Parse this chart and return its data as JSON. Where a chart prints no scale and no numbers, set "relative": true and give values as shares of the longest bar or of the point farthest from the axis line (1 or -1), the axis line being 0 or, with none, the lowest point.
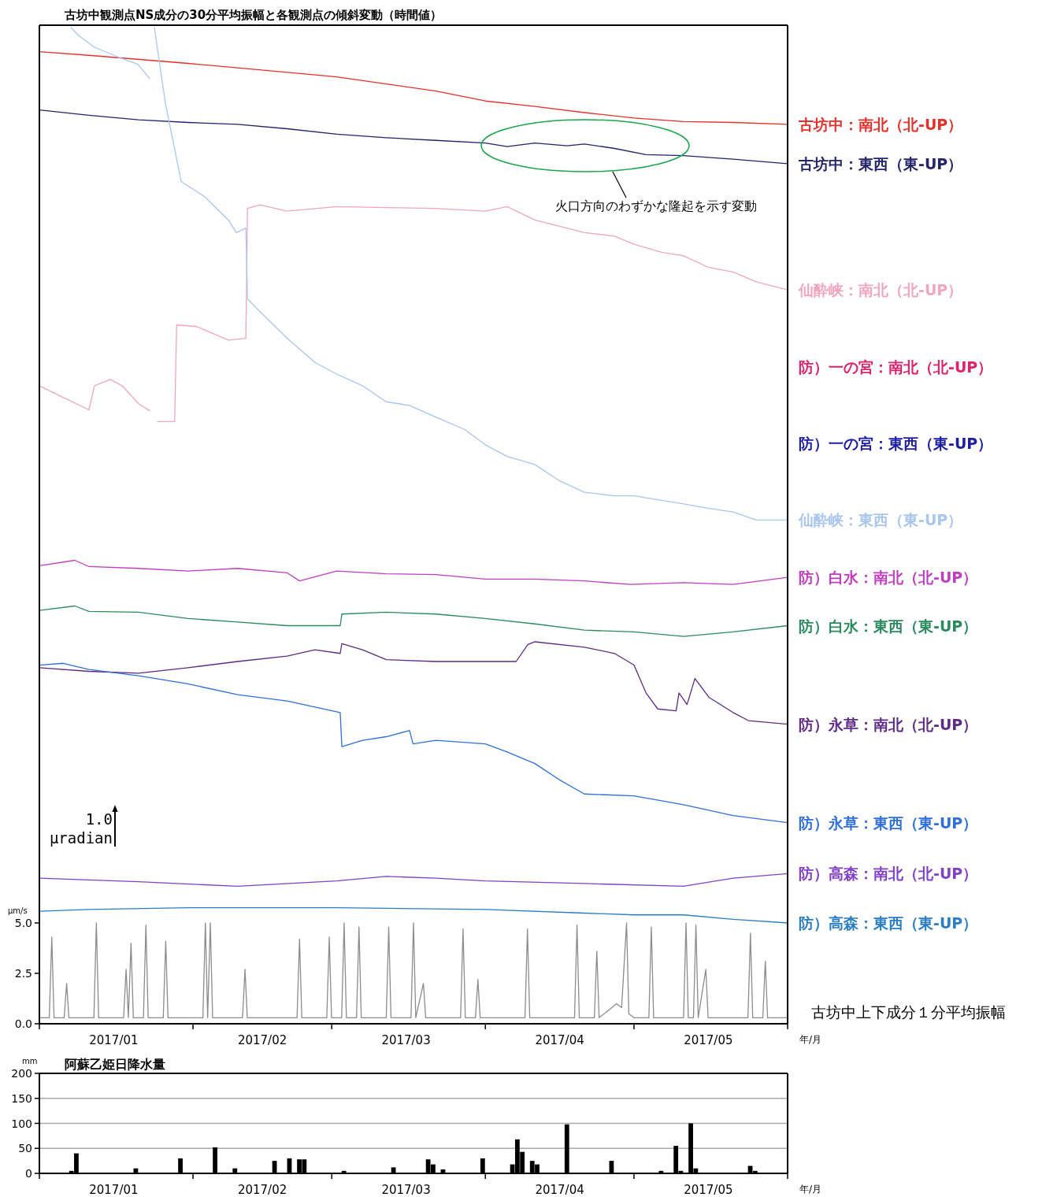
{
  "chart_data": [
    {
      "type": "line",
      "title": "古坊中観測点NS成分の30分平均振幅と各観測点の傾斜変動（時間値）",
      "relative": true,
      "xlim": [
        "2017-01-01",
        "2017-06-01"
      ],
      "annotations": [
        "火口方向のわずかな隆起を示す変動",
        "1.0 μradian"
      ],
      "series": [
        {
          "name": "古坊中：南北（北-UP）",
          "color": "#e8302a",
          "x": [
            "2017-01-01",
            "2017-01-11",
            "2017-01-31",
            "2017-02-10",
            "2017-03-02",
            "2017-03-12",
            "2017-03-22",
            "2017-04-01",
            "2017-04-11",
            "2017-04-21",
            "2017-05-01",
            "2017-05-11",
            "2017-05-21",
            "2017-06-01"
          ],
          "values": [
            0.973,
            0.969,
            0.96,
            0.955,
            0.945,
            0.937,
            0.929,
            0.918,
            0.912,
            0.905,
            0.899,
            0.895,
            0.894,
            0.892
          ]
        },
        {
          "name": "古坊中：東西（東-UP）",
          "color": "#23236e",
          "x": [
            "2017-01-01",
            "2017-01-11",
            "2017-01-21",
            "2017-01-31",
            "2017-02-10",
            "2017-02-20",
            "2017-03-02",
            "2017-03-12",
            "2017-03-22",
            "2017-04-01",
            "2017-04-05T10:00",
            "2017-04-11",
            "2017-04-17T12:00",
            "2017-04-21",
            "2017-04-27T02:00",
            "2017-05-03T10:00",
            "2017-05-11",
            "2017-05-21",
            "2017-06-01"
          ],
          "values": [
            0.908,
            0.902,
            0.897,
            0.894,
            0.892,
            0.887,
            0.881,
            0.877,
            0.874,
            0.871,
            0.867,
            0.871,
            0.868,
            0.87,
            0.865,
            0.858,
            0.857,
            0.853,
            0.848
          ]
        },
        {
          "name": "仙酔峡：南北（北-UP）",
          "color": "#f2a6bd",
          "x": [
            "2017-01-01",
            "2017-01-05T19:00",
            "2017-01-11",
            "2017-01-12T03:00",
            "2017-01-15T07:00",
            "2017-01-17T17:00",
            "2017-01-21",
            "2017-01-23T06:00",
            "2017-01-23T18:00",
            "2017-01-24T20:00",
            "2017-01-28T07:00",
            "2017-01-28T17:00",
            "2017-02-01T19:00",
            "2017-02-08T04:00",
            "2017-02-11T16:00",
            "2017-02-12T00:00",
            "2017-02-14T12:00",
            "2017-02-20",
            "2017-03-02",
            "2017-03-12",
            "2017-03-22",
            "2017-04-01",
            "2017-04-05T10:00",
            "2017-04-11",
            "2017-04-21",
            "2017-04-27T02:00",
            "2017-05-01",
            "2017-05-06T14:00",
            "2017-05-11",
            "2017-05-16T03:00",
            "2017-05-21",
            "2017-05-25T16:00",
            "2017-06-01"
          ],
          "values": [
            0.6,
            0.587,
            0.573,
            0.6,
            0.607,
            0.6,
            0.58,
            0.572,
            null,
            0.56,
            0.56,
            0.668,
            0.666,
            0.651,
            0.653,
            0.798,
            0.802,
            0.795,
            0.8,
            0.799,
            0.798,
            0.795,
            0.8,
            0.785,
            0.771,
            0.767,
            0.758,
            0.749,
            0.745,
            0.732,
            0.727,
            0.716,
            0.707
          ]
        },
        {
          "name": "防）一の宮：南北（北-UP）",
          "color": "#e0206a"
        },
        {
          "name": "防）一の宮：東西（東-UP）",
          "color": "#1c1ca8"
        },
        {
          "name": "仙酔峡：東西（東-UP）",
          "color": "#a9c6ef",
          "x": [
            "2017-01-07T09:00",
            "2017-01-08T23:00",
            "2017-01-12T03:00",
            "2017-01-16T22:00",
            "2017-01-20T21:00",
            "2017-01-23T06:00",
            "2017-01-23T18:00",
            "2017-01-24T05:00",
            "2017-01-26T10:00",
            "2017-01-29T15:00",
            "2017-02-03T09:00",
            "2017-02-08T04:00",
            "2017-02-09T18:00",
            "2017-02-11T16:00",
            "2017-02-12T00:00",
            "2017-02-14T12:00",
            "2017-02-20",
            "2017-02-25T15:00",
            "2017-03-02",
            "2017-03-07T05:00",
            "2017-03-12",
            "2017-03-16T17:00",
            "2017-03-22",
            "2017-03-27T21:00",
            "2017-04-01",
            "2017-04-05T10:00",
            "2017-04-11",
            "2017-04-15T22:00",
            "2017-04-21",
            "2017-04-27T02:00",
            "2017-05-01",
            "2017-05-06T14:00",
            "2017-05-11",
            "2017-05-16T03:00",
            "2017-05-21",
            "2017-05-25T16:00",
            "2017-06-01"
          ],
          "values": [
            1.0,
            0.991,
            0.978,
            0.967,
            0.959,
            0.943,
            null,
            1.0,
            0.916,
            0.828,
            0.811,
            0.785,
            0.771,
            0.776,
            0.697,
            0.683,
            0.653,
            0.626,
            0.613,
            0.6,
            0.582,
            0.578,
            0.565,
            0.551,
            0.534,
            0.521,
            0.512,
            0.494,
            0.481,
            0.477,
            0.477,
            0.472,
            0.468,
            0.463,
            0.459,
            0.45,
            0.45
          ]
        },
        {
          "name": "防）白水：南北（北-UP）",
          "color": "#c23cc2",
          "x": [
            "2017-01-01",
            "2017-01-08T04:00",
            "2017-01-11",
            "2017-01-21",
            "2017-01-31",
            "2017-02-10",
            "2017-02-20",
            "2017-02-22T12:00",
            "2017-03-02",
            "2017-03-12",
            "2017-03-22",
            "2017-04-01",
            "2017-04-11",
            "2017-04-21",
            "2017-04-30T06:00",
            "2017-05-11",
            "2017-05-21",
            "2017-06-01"
          ],
          "values": [
            0.399,
            0.405,
            0.398,
            0.396,
            0.393,
            0.396,
            0.391,
            0.382,
            0.393,
            0.39,
            0.389,
            0.384,
            0.384,
            0.382,
            0.378,
            0.38,
            0.378,
            0.386
          ]
        },
        {
          "name": "防）白水：東西（東-UP）",
          "color": "#2a8a5e",
          "x": [
            "2017-01-01",
            "2017-01-08T04:00",
            "2017-01-11",
            "2017-01-21",
            "2017-01-31",
            "2017-02-10",
            "2017-02-20",
            "2017-03-02T17:00",
            "2017-03-03T01:00",
            "2017-03-12",
            "2017-03-22",
            "2017-04-01",
            "2017-04-11",
            "2017-04-21",
            "2017-05-01",
            "2017-05-11",
            "2017-05-21",
            "2017-06-01"
          ],
          "values": [
            0.349,
            0.354,
            0.348,
            0.347,
            0.34,
            0.336,
            0.332,
            0.332,
            0.345,
            0.347,
            0.345,
            0.34,
            0.334,
            0.327,
            0.325,
            0.32,
            0.325,
            0.332
          ]
        },
        {
          "name": "防）永草：南北（北-UP）",
          "color": "#5e2a86",
          "x": [
            "2017-01-01",
            "2017-01-11",
            "2017-01-21",
            "2017-01-31",
            "2017-02-10",
            "2017-02-20",
            "2017-02-25T15:00",
            "2017-03-02T17:00",
            "2017-03-03T01:00",
            "2017-03-07T05:00",
            "2017-03-12",
            "2017-03-22",
            "2017-04-01",
            "2017-04-07T05:00",
            "2017-04-09T14:00",
            "2017-04-11",
            "2017-04-21",
            "2017-04-27T02:00",
            "2017-05-01",
            "2017-05-03T10:00",
            "2017-05-05T19:00",
            "2017-05-09T12:00",
            "2017-05-10T02:00",
            "2017-05-11T17:00",
            "2017-05-13T07:00",
            "2017-05-16T03:00",
            "2017-05-21",
            "2017-05-24T02:00",
            "2017-06-01"
          ],
          "values": [
            0.285,
            0.281,
            0.279,
            0.285,
            0.292,
            0.298,
            0.305,
            0.301,
            0.312,
            0.305,
            0.294,
            0.292,
            0.292,
            0.292,
            0.311,
            0.314,
            0.308,
            0.301,
            0.288,
            0.257,
            0.239,
            0.237,
            0.257,
            0.244,
            0.273,
            0.252,
            0.235,
            0.226,
            0.222
          ]
        },
        {
          "name": "防）永草：東西（東-UP）",
          "color": "#2f6fdc",
          "x": [
            "2017-01-01",
            "2017-01-05T19:00",
            "2017-01-11",
            "2017-01-21",
            "2017-01-31",
            "2017-02-10",
            "2017-02-20",
            "2017-02-25T15:00",
            "2017-03-02T17:00",
            "2017-03-03T01:00",
            "2017-03-07T05:00",
            "2017-03-12",
            "2017-03-16T17:00",
            "2017-03-17T10:00",
            "2017-03-22",
            "2017-04-01",
            "2017-04-05T10:00",
            "2017-04-11",
            "2017-04-15T22:00",
            "2017-04-21",
            "2017-05-01",
            "2017-05-11",
            "2017-05-21",
            "2017-06-01"
          ],
          "values": [
            0.288,
            0.29,
            0.283,
            0.276,
            0.267,
            0.255,
            0.248,
            0.241,
            0.235,
            0.197,
            0.204,
            0.208,
            0.215,
            0.2,
            0.204,
            0.2,
            0.191,
            0.178,
            0.16,
            0.144,
            0.142,
            0.132,
            0.12,
            0.112
          ]
        },
        {
          "name": "防）高森：南北（北-UP）",
          "color": "#8040c8",
          "x": [
            "2017-01-01",
            "2017-01-21",
            "2017-02-10",
            "2017-03-02",
            "2017-03-12",
            "2017-03-22",
            "2017-04-01",
            "2017-04-21",
            "2017-05-11",
            "2017-05-21",
            "2017-06-01"
          ],
          "values": [
            0.05,
            0.046,
            0.041,
            0.047,
            0.052,
            0.05,
            0.047,
            0.044,
            0.041,
            0.05,
            0.055
          ]
        },
        {
          "name": "防）高森：東西（東-UP）",
          "color": "#2a7ec8",
          "x": [
            "2017-01-01",
            "2017-01-11",
            "2017-01-31",
            "2017-03-02",
            "2017-04-01",
            "2017-04-21",
            "2017-05-01",
            "2017-05-11",
            "2017-05-21",
            "2017-06-01"
          ],
          "values": [
            0.013,
            0.015,
            0.017,
            0.017,
            0.015,
            0.011,
            0.009,
            0.009,
            0.004,
            0
          ]
        }
      ]
    },
    {
      "type": "line",
      "annotations": [
        "古坊中上下成分１分平均振幅"
      ],
      "ylabel": "μm/s",
      "xlabel": "年/月",
      "xlim": [
        "2017-01-01",
        "2017-06-01"
      ],
      "xticks": [
        {
          "value": "2017-01-01",
          "label": null
        },
        {
          "value": "2017-01-16",
          "label": "2017/01"
        },
        {
          "value": "2017-02-01",
          "label": null
        },
        {
          "value": "2017-02-15",
          "label": "2017/02"
        },
        {
          "value": "2017-03-01",
          "label": null
        },
        {
          "value": "2017-03-16",
          "label": "2017/03"
        },
        {
          "value": "2017-04-01",
          "label": null
        },
        {
          "value": "2017-04-16",
          "label": "2017/04"
        },
        {
          "value": "2017-05-01",
          "label": null
        },
        {
          "value": "2017-05-16",
          "label": "2017/05"
        },
        {
          "value": "2017-06-01",
          "label": null
        }
      ],
      "ylim": [
        0,
        5
      ],
      "yticks": [
        {
          "value": 0,
          "label": "0.0"
        },
        {
          "value": 2.5,
          "label": "2.5"
        },
        {
          "value": 5,
          "label": "5.0"
        }
      ],
      "series": [
        {
          "color": "#8c8c8c",
          "x": [
            "2017-01-01",
            "2017-01-03T00:00",
            "2017-01-03T12:00",
            "2017-01-03T23:00",
            "2017-01-06T00:00",
            "2017-01-06T12:00",
            "2017-01-06T23:00",
            "2017-01-12T00:00",
            "2017-01-12T12:00",
            "2017-01-12T23:00",
            "2017-01-18T00:00",
            "2017-01-18T12:00",
            "2017-01-18T23:00",
            "2017-01-19T12:00",
            "2017-01-19T23:00",
            "2017-01-22T00:00",
            "2017-01-22T12:00",
            "2017-01-22T23:00",
            "2017-01-26T00:00",
            "2017-01-26T12:00",
            "2017-01-26T23:00",
            "2017-02-03T00:00",
            "2017-02-03T12:00",
            "2017-02-03T23:00",
            "2017-02-04T12:00",
            "2017-02-04T23:00",
            "2017-02-11T00:00",
            "2017-02-11T12:00",
            "2017-02-11T23:00",
            "2017-02-22T00:00",
            "2017-02-22T12:00",
            "2017-02-22T23:00",
            "2017-02-28T00:00",
            "2017-02-28T12:00",
            "2017-02-28T23:00",
            "2017-03-03T00:00",
            "2017-03-03T12:00",
            "2017-03-03T23:00",
            "2017-03-06T00:00",
            "2017-03-06T12:00",
            "2017-03-06T23:00",
            "2017-03-12T00:00",
            "2017-03-12T12:00",
            "2017-03-12T23:00",
            "2017-03-17T00:00",
            "2017-03-17T12:00",
            "2017-03-17T23:00",
            "2017-03-19T12:00",
            "2017-03-19T23:00",
            "2017-03-27T00:00",
            "2017-03-27T12:00",
            "2017-03-27T23:00",
            "2017-03-30T00:00",
            "2017-03-30T12:00",
            "2017-03-30T23:00",
            "2017-04-09T00:00",
            "2017-04-09T12:00",
            "2017-04-09T23:00",
            "2017-04-19T00:00",
            "2017-04-19T12:00",
            "2017-04-19T23:00",
            "2017-04-23T00:00",
            "2017-04-23T12:00",
            "2017-04-23T23:00",
            "2017-04-25T12:00",
            "2017-04-27T12:00",
            "2017-04-28T12:00",
            "2017-04-29T12:00",
            "2017-04-29T23:00",
            "2017-05-01T00:00",
            "2017-05-04T00:00",
            "2017-05-04T12:00",
            "2017-05-04T23:00",
            "2017-05-11T00:00",
            "2017-05-11T12:00",
            "2017-05-11T23:00",
            "2017-05-13T00:00",
            "2017-05-13T12:00",
            "2017-05-13T23:00",
            "2017-05-15T12:00",
            "2017-05-15T23:00",
            "2017-05-24T00:00",
            "2017-05-24T12:00",
            "2017-05-24T23:00",
            "2017-05-27T00:00",
            "2017-05-27T12:00",
            "2017-05-27T23:00",
            "2017-06-01"
          ],
          "values": [
            0.3,
            0.3,
            4.3,
            0.3,
            0.3,
            2.0,
            0.3,
            0.3,
            5.0,
            0.3,
            0.3,
            2.7,
            0.3,
            4.0,
            0.3,
            0.3,
            4.9,
            0.3,
            0.3,
            4.1,
            0.3,
            0.3,
            5.0,
            0.3,
            5.0,
            0.3,
            0.3,
            2.7,
            0.3,
            0.3,
            4.2,
            0.3,
            0.3,
            4.3,
            0.3,
            0.3,
            5.0,
            0.3,
            0.3,
            4.8,
            0.3,
            0.3,
            4.8,
            0.3,
            0.3,
            5.0,
            0.3,
            2.0,
            0.3,
            0.3,
            4.7,
            0.3,
            0.3,
            2.2,
            0.3,
            0.3,
            4.7,
            0.3,
            0.3,
            4.9,
            0.3,
            0.3,
            3.6,
            0.3,
            0.6,
            1.0,
            0.8,
            5.0,
            0.5,
            0.3,
            0.3,
            4.8,
            0.3,
            0.3,
            5.0,
            0.3,
            0.3,
            4.9,
            0.3,
            2.7,
            0.3,
            0.3,
            4.5,
            0.3,
            0.3,
            3.1,
            0.3,
            0.3
          ]
        }
      ]
    },
    {
      "type": "bar",
      "title": "阿蘇乙姫日降水量",
      "ylabel": "mm",
      "xlabel": "年/月",
      "grid": "y",
      "xlim": [
        "2017-01-01",
        "2017-06-01"
      ],
      "xticks": [
        {
          "value": "2017-01-01",
          "label": null
        },
        {
          "value": "2017-01-16",
          "label": "2017/01"
        },
        {
          "value": "2017-02-01",
          "label": null
        },
        {
          "value": "2017-02-15",
          "label": "2017/02"
        },
        {
          "value": "2017-03-01",
          "label": null
        },
        {
          "value": "2017-03-16",
          "label": "2017/03"
        },
        {
          "value": "2017-04-01",
          "label": null
        },
        {
          "value": "2017-04-16",
          "label": "2017/04"
        },
        {
          "value": "2017-05-01",
          "label": null
        },
        {
          "value": "2017-05-16",
          "label": "2017/05"
        },
        {
          "value": "2017-06-01",
          "label": null
        }
      ],
      "ylim": [
        0,
        200
      ],
      "yticks": [
        0,
        50,
        100,
        150,
        200
      ],
      "series": [
        {
          "color": "#000000",
          "x": [
            "2017-01-07",
            "2017-01-08",
            "2017-01-20",
            "2017-01-29",
            "2017-02-05",
            "2017-02-09",
            "2017-02-17",
            "2017-02-20",
            "2017-02-22",
            "2017-02-23",
            "2017-03-03",
            "2017-03-13",
            "2017-03-20",
            "2017-03-21",
            "2017-03-23",
            "2017-03-31",
            "2017-04-06",
            "2017-04-07",
            "2017-04-08",
            "2017-04-10",
            "2017-04-11",
            "2017-04-17",
            "2017-04-26",
            "2017-05-06",
            "2017-05-09",
            "2017-05-10",
            "2017-05-12",
            "2017-05-13",
            "2017-05-24",
            "2017-05-25"
          ],
          "values": [
            5,
            40,
            10,
            30,
            52,
            10,
            25,
            30,
            28,
            28,
            5,
            12,
            28,
            18,
            8,
            30,
            18,
            68,
            43,
            25,
            18,
            98,
            25,
            5,
            55,
            5,
            100,
            10,
            15,
            5
          ]
        }
      ]
    }
  ]
}
